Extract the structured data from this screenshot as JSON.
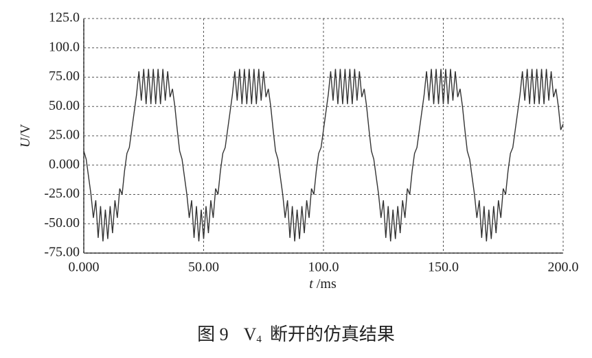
{
  "chart_data": {
    "type": "line",
    "color": "#333333",
    "grid": true,
    "ylabel_italic": "U",
    "ylabel_rest": "/V",
    "xlabel_italic": "t",
    "xlabel_rest": " /ms",
    "caption": {
      "prefix": "图 9",
      "var": "V",
      "sub": "4",
      "text": "断开的仿真结果"
    },
    "xlim": [
      0,
      200
    ],
    "xticks": [
      {
        "value": 0,
        "label": "0.000"
      },
      {
        "value": 50,
        "label": "50.00"
      },
      {
        "value": 100,
        "label": "100.0"
      },
      {
        "value": 150,
        "label": "150.0"
      },
      {
        "value": 200,
        "label": "200.0"
      }
    ],
    "ylim": [
      -75,
      125
    ],
    "yticks": [
      {
        "value": 125,
        "label": "125.0"
      },
      {
        "value": 100,
        "label": "100.0"
      },
      {
        "value": 75,
        "label": "75.00"
      },
      {
        "value": 50,
        "label": "50.00"
      },
      {
        "value": 25,
        "label": "25.00"
      },
      {
        "value": 0,
        "label": "0.000"
      },
      {
        "value": -25,
        "label": "-25.00"
      },
      {
        "value": -50,
        "label": "-50.00"
      },
      {
        "value": -75,
        "label": "-75.00"
      }
    ],
    "x": [
      0,
      1,
      2,
      3,
      4,
      5,
      6,
      7,
      8,
      9,
      10,
      11,
      12,
      13,
      14,
      15,
      16,
      17,
      18,
      19,
      20,
      21,
      22,
      23,
      24,
      25,
      26,
      27,
      28,
      29,
      30,
      31,
      32,
      33,
      34,
      35,
      36,
      37,
      38,
      39,
      40,
      41,
      42,
      43,
      44,
      45,
      46,
      47,
      48,
      49,
      50,
      51,
      52,
      53,
      54,
      55,
      56,
      57,
      58,
      59,
      60,
      61,
      62,
      63,
      64,
      65,
      66,
      67,
      68,
      69,
      70,
      71,
      72,
      73,
      74,
      75,
      76,
      77,
      78,
      79,
      80,
      81,
      82,
      83,
      84,
      85,
      86,
      87,
      88,
      89,
      90,
      91,
      92,
      93,
      94,
      95,
      96,
      97,
      98,
      99,
      100,
      101,
      102,
      103,
      104,
      105,
      106,
      107,
      108,
      109,
      110,
      111,
      112,
      113,
      114,
      115,
      116,
      117,
      118,
      119,
      120,
      121,
      122,
      123,
      124,
      125,
      126,
      127,
      128,
      129,
      130,
      131,
      132,
      133,
      134,
      135,
      136,
      137,
      138,
      139,
      140,
      141,
      142,
      143,
      144,
      145,
      146,
      147,
      148,
      149,
      150,
      151,
      152,
      153,
      154,
      155,
      156,
      157,
      158,
      159,
      160,
      161,
      162,
      163,
      164,
      165,
      166,
      167,
      168,
      169,
      170,
      171,
      172,
      173,
      174,
      175,
      176,
      177,
      178,
      179,
      180,
      181,
      182,
      183,
      184,
      185,
      186,
      187,
      188,
      189,
      190,
      191,
      192,
      193,
      194,
      195,
      196,
      197,
      198,
      199,
      200
    ],
    "values": [
      12,
      5,
      -10,
      -25,
      -45,
      -30,
      -62,
      -35,
      -65,
      -38,
      -63,
      -35,
      -58,
      -30,
      -45,
      -20,
      -25,
      -5,
      10,
      15,
      30,
      45,
      60,
      80,
      55,
      82,
      52,
      82,
      52,
      82,
      52,
      82,
      52,
      82,
      55,
      80,
      58,
      65,
      50,
      30,
      12,
      5,
      -10,
      -25,
      -45,
      -30,
      -62,
      -35,
      -65,
      -38,
      -63,
      -35,
      -58,
      -30,
      -45,
      -20,
      -25,
      -5,
      10,
      15,
      30,
      45,
      60,
      80,
      55,
      82,
      52,
      82,
      52,
      82,
      52,
      82,
      52,
      82,
      55,
      80,
      58,
      65,
      50,
      30,
      12,
      5,
      -10,
      -25,
      -45,
      -30,
      -62,
      -35,
      -65,
      -38,
      -63,
      -35,
      -58,
      -30,
      -45,
      -20,
      -25,
      -5,
      10,
      15,
      30,
      45,
      60,
      80,
      55,
      82,
      52,
      82,
      52,
      82,
      52,
      82,
      52,
      82,
      55,
      80,
      58,
      65,
      50,
      30,
      12,
      5,
      -10,
      -25,
      -45,
      -30,
      -62,
      -35,
      -65,
      -38,
      -63,
      -35,
      -58,
      -30,
      -45,
      -20,
      -25,
      -5,
      10,
      15,
      30,
      45,
      60,
      80,
      55,
      82,
      52,
      82,
      52,
      82,
      52,
      82,
      52,
      82,
      55,
      80,
      58,
      65,
      50,
      30,
      12,
      5,
      -10,
      -25,
      -45,
      -30,
      -62,
      -35,
      -65,
      -38,
      -63,
      -35,
      -58,
      -30,
      -45,
      -20,
      -25,
      -5,
      10,
      15,
      30,
      45,
      60,
      80,
      55,
      82,
      52,
      82,
      52,
      82,
      52,
      82,
      52,
      82,
      55,
      80,
      58,
      65,
      50,
      30,
      35
    ]
  }
}
